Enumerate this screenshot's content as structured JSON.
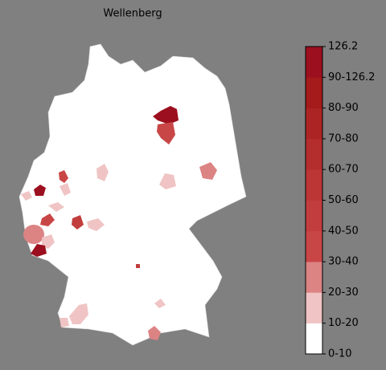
{
  "title": "Wellenberg",
  "legend": {
    "labels": [
      "0-10",
      "10-20",
      "20-30",
      "30-40",
      "40-50",
      "50-60",
      "60-70",
      "70-80",
      "80-90",
      "90-126.2",
      "126.2"
    ],
    "colors": [
      "#ffffff",
      "#f0c4c4",
      "#dc8383",
      "#c94646",
      "#c23d3d",
      "#bc3636",
      "#b52e2e",
      "#ad2424",
      "#a51a1a",
      "#9c0f1e"
    ]
  }
}
